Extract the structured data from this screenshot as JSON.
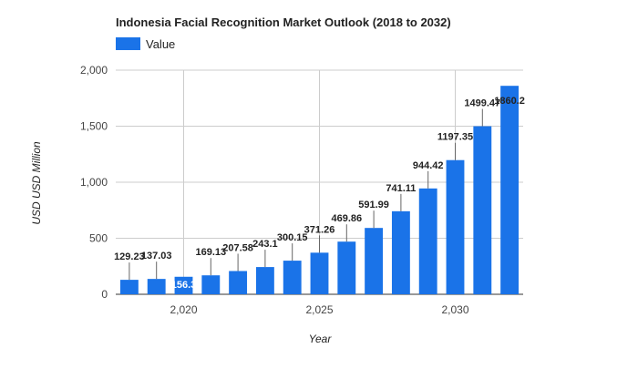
{
  "chart_data": {
    "type": "bar",
    "title": "Indonesia Facial Recognition Market Outlook (2018 to 2032)",
    "xlabel": "Year",
    "ylabel": "USD USD Million",
    "legend": {
      "position": "top-left",
      "entries": [
        "Value"
      ]
    },
    "grid": true,
    "color": "#1a73e8",
    "categories": [
      "2018",
      "2019",
      "2020",
      "2021",
      "2022",
      "2023",
      "2024",
      "2025",
      "2026",
      "2027",
      "2028",
      "2029",
      "2030",
      "2031",
      "2032"
    ],
    "x_tick_values": [
      2020,
      2025,
      2030
    ],
    "x_tick_labels": [
      "2,020",
      "2,025",
      "2,030"
    ],
    "y_tick_values": [
      0,
      500,
      1000,
      1500,
      2000
    ],
    "y_tick_labels": [
      "0",
      "500",
      "1,000",
      "1,500",
      "2,000"
    ],
    "ylim": [
      0,
      2000
    ],
    "series": [
      {
        "name": "Value",
        "values": [
          129.23,
          137.03,
          156.3,
          169.13,
          207.58,
          243.1,
          300.15,
          371.26,
          469.86,
          591.99,
          741.11,
          944.42,
          1197.35,
          1499.47,
          1860.2
        ],
        "data_labels": [
          "129.23",
          "137.03",
          "156.3",
          "169.13",
          "207.58",
          "243.1",
          "300.15",
          "371.26",
          "469.86",
          "591.99",
          "741.11",
          "944.42",
          "1197.35",
          "1499.47",
          "1860.2"
        ]
      }
    ]
  }
}
